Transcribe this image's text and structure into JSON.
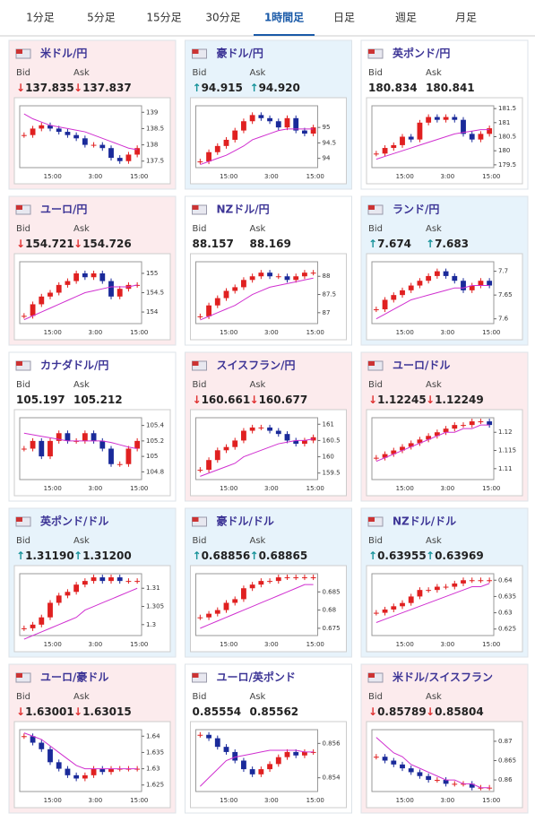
{
  "tabs": [
    "1分足",
    "5分足",
    "15分足",
    "30分足",
    "1時間足",
    "日足",
    "週足",
    "月足"
  ],
  "active_tab": 4,
  "labels": {
    "bid": "Bid",
    "ask": "Ask"
  },
  "xlabels": [
    "15:00",
    "3:00",
    "15:00"
  ],
  "cards": [
    {
      "title": "米ドル/円",
      "color": "#fcebed",
      "arrow": "↓",
      "bid": "137.835",
      "ask": "137.837",
      "ylim": [
        137.3,
        139.2
      ],
      "yticks": [
        139,
        138.5,
        138,
        137.5
      ],
      "close": [
        138.3,
        138.5,
        138.6,
        138.5,
        138.4,
        138.3,
        138.2,
        138.0,
        138.0,
        137.9,
        137.6,
        137.5,
        137.7,
        137.9
      ],
      "ma": [
        138.95,
        138.8,
        138.7,
        138.6,
        138.55,
        138.5,
        138.45,
        138.4,
        138.3,
        138.2,
        138.1,
        138.0,
        137.9,
        137.85
      ]
    },
    {
      "title": "豪ドル/円",
      "color": "#e7f3fb",
      "arrow": "↑",
      "bid": "94.915",
      "ask": "94.920",
      "ylim": [
        93.7,
        95.7
      ],
      "yticks": [
        95,
        94.5,
        94
      ],
      "close": [
        93.9,
        94.2,
        94.4,
        94.6,
        94.9,
        95.2,
        95.4,
        95.3,
        95.2,
        95.0,
        95.3,
        94.9,
        94.8,
        95.0
      ],
      "ma": [
        93.8,
        93.9,
        94.0,
        94.1,
        94.25,
        94.4,
        94.6,
        94.7,
        94.8,
        94.9,
        94.95,
        94.95,
        94.95,
        94.95
      ]
    },
    {
      "title": "英ポンド/円",
      "color": "#ffffff",
      "bid": "180.834",
      "ask": "180.841",
      "ylim": [
        179.4,
        181.6
      ],
      "yticks": [
        181.5,
        181,
        180.5,
        180,
        179.5
      ],
      "close": [
        179.9,
        180.1,
        180.2,
        180.5,
        180.4,
        181.0,
        181.2,
        181.1,
        181.2,
        181.1,
        180.6,
        180.4,
        180.6,
        180.8
      ],
      "ma": [
        179.7,
        179.8,
        179.9,
        180.0,
        180.1,
        180.2,
        180.3,
        180.4,
        180.5,
        180.6,
        180.65,
        180.7,
        180.75,
        180.75
      ]
    },
    {
      "title": "ユーロ/円",
      "color": "#fcebed",
      "arrow": "↓",
      "bid": "154.721",
      "ask": "154.726",
      "ylim": [
        153.7,
        155.3
      ],
      "yticks": [
        155,
        154.5,
        154
      ],
      "close": [
        153.9,
        154.2,
        154.4,
        154.5,
        154.7,
        154.8,
        155.0,
        154.9,
        155.0,
        154.8,
        154.4,
        154.6,
        154.7,
        154.7
      ],
      "ma": [
        153.8,
        153.9,
        154.0,
        154.1,
        154.2,
        154.3,
        154.4,
        154.5,
        154.55,
        154.6,
        154.65,
        154.65,
        154.65,
        154.7
      ]
    },
    {
      "title": "NZドル/円",
      "color": "#ffffff",
      "bid": "88.157",
      "ask": "88.169",
      "ylim": [
        86.7,
        88.4
      ],
      "yticks": [
        88,
        87.5,
        87
      ],
      "close": [
        86.9,
        87.2,
        87.4,
        87.6,
        87.7,
        87.9,
        88.0,
        88.1,
        88.0,
        88.0,
        87.9,
        88.0,
        88.1,
        88.1
      ],
      "ma": [
        86.8,
        86.9,
        87.0,
        87.1,
        87.2,
        87.35,
        87.5,
        87.6,
        87.7,
        87.75,
        87.8,
        87.85,
        87.9,
        87.95
      ]
    },
    {
      "title": "ランド/円",
      "color": "#e7f3fb",
      "arrow": "↑",
      "bid": "7.674",
      "ask": "7.683",
      "ylim": [
        7.59,
        7.72
      ],
      "yticks": [
        7.7,
        7.65,
        7.6
      ],
      "close": [
        7.62,
        7.64,
        7.65,
        7.66,
        7.67,
        7.68,
        7.69,
        7.7,
        7.69,
        7.68,
        7.66,
        7.67,
        7.68,
        7.67
      ],
      "ma": [
        7.6,
        7.61,
        7.62,
        7.63,
        7.64,
        7.645,
        7.65,
        7.655,
        7.66,
        7.665,
        7.665,
        7.67,
        7.67,
        7.67
      ]
    },
    {
      "title": "カナダドル/円",
      "color": "#ffffff",
      "bid": "105.197",
      "ask": "105.212",
      "ylim": [
        104.7,
        105.5
      ],
      "yticks": [
        105.4,
        105.2,
        105,
        104.8
      ],
      "close": [
        105.1,
        105.2,
        105.0,
        105.2,
        105.3,
        105.2,
        105.2,
        105.3,
        105.2,
        105.1,
        104.9,
        104.9,
        105.1,
        105.2
      ],
      "ma": [
        105.3,
        105.28,
        105.26,
        105.24,
        105.22,
        105.2,
        105.2,
        105.2,
        105.2,
        105.2,
        105.18,
        105.15,
        105.12,
        105.1
      ]
    },
    {
      "title": "スイスフラン/円",
      "color": "#fcebed",
      "arrow": "↓",
      "bid": "160.661",
      "ask": "160.677",
      "ylim": [
        159.3,
        161.2
      ],
      "yticks": [
        161,
        160.5,
        160,
        159.5
      ],
      "close": [
        159.6,
        159.9,
        160.2,
        160.3,
        160.5,
        160.8,
        160.9,
        160.9,
        160.8,
        160.7,
        160.5,
        160.4,
        160.5,
        160.6
      ],
      "ma": [
        159.4,
        159.5,
        159.6,
        159.7,
        159.8,
        160.0,
        160.1,
        160.2,
        160.3,
        160.4,
        160.45,
        160.5,
        160.5,
        160.55
      ]
    },
    {
      "title": "ユーロ/ドル",
      "color": "#fcebed",
      "arrow": "↓",
      "bid": "1.12245",
      "ask": "1.12249",
      "ylim": [
        1.107,
        1.124
      ],
      "yticks": [
        1.12,
        1.115,
        1.11
      ],
      "close": [
        1.113,
        1.114,
        1.115,
        1.116,
        1.117,
        1.118,
        1.119,
        1.12,
        1.121,
        1.122,
        1.122,
        1.123,
        1.123,
        1.122
      ],
      "ma": [
        1.112,
        1.113,
        1.114,
        1.115,
        1.116,
        1.117,
        1.118,
        1.119,
        1.12,
        1.12,
        1.121,
        1.121,
        1.122,
        1.122
      ]
    },
    {
      "title": "英ポンド/ドル",
      "color": "#e7f3fb",
      "arrow": "↑",
      "bid": "1.31190",
      "ask": "1.31200",
      "ylim": [
        1.297,
        1.314
      ],
      "yticks": [
        1.31,
        1.305,
        1.3
      ],
      "close": [
        1.299,
        1.3,
        1.302,
        1.306,
        1.308,
        1.309,
        1.311,
        1.312,
        1.313,
        1.312,
        1.313,
        1.312,
        1.312,
        1.312
      ],
      "ma": [
        1.296,
        1.297,
        1.298,
        1.299,
        1.3,
        1.301,
        1.302,
        1.304,
        1.305,
        1.306,
        1.307,
        1.308,
        1.309,
        1.31
      ]
    },
    {
      "title": "豪ドル/ドル",
      "color": "#e7f3fb",
      "arrow": "↑",
      "bid": "0.68856",
      "ask": "0.68865",
      "ylim": [
        0.673,
        0.69
      ],
      "yticks": [
        0.685,
        0.68,
        0.675
      ],
      "close": [
        0.678,
        0.679,
        0.68,
        0.682,
        0.683,
        0.686,
        0.687,
        0.688,
        0.688,
        0.689,
        0.689,
        0.689,
        0.689,
        0.689
      ],
      "ma": [
        0.675,
        0.676,
        0.677,
        0.678,
        0.679,
        0.68,
        0.681,
        0.682,
        0.683,
        0.684,
        0.685,
        0.686,
        0.687,
        0.687
      ]
    },
    {
      "title": "NZドル/ドル",
      "color": "#e7f3fb",
      "arrow": "↑",
      "bid": "0.63955",
      "ask": "0.63969",
      "ylim": [
        0.623,
        0.642
      ],
      "yticks": [
        0.64,
        0.635,
        0.63,
        0.625
      ],
      "close": [
        0.63,
        0.631,
        0.632,
        0.633,
        0.635,
        0.637,
        0.637,
        0.638,
        0.638,
        0.639,
        0.64,
        0.64,
        0.64,
        0.64
      ],
      "ma": [
        0.627,
        0.628,
        0.629,
        0.63,
        0.631,
        0.632,
        0.633,
        0.634,
        0.635,
        0.636,
        0.637,
        0.638,
        0.638,
        0.639
      ]
    },
    {
      "title": "ユーロ/豪ドル",
      "color": "#fcebed",
      "arrow": "↓",
      "bid": "1.63001",
      "ask": "1.63015",
      "ylim": [
        1.623,
        1.642
      ],
      "yticks": [
        1.64,
        1.635,
        1.63,
        1.625
      ],
      "close": [
        1.64,
        1.638,
        1.636,
        1.632,
        1.63,
        1.628,
        1.627,
        1.628,
        1.63,
        1.629,
        1.63,
        1.63,
        1.63,
        1.63
      ],
      "ma": [
        1.641,
        1.64,
        1.639,
        1.637,
        1.635,
        1.633,
        1.631,
        1.63,
        1.63,
        1.63,
        1.63,
        1.63,
        1.63,
        1.63
      ]
    },
    {
      "title": "ユーロ/英ポンド",
      "color": "#ffffff",
      "bid": "0.85554",
      "ask": "0.85562",
      "ylim": [
        0.8532,
        0.8568
      ],
      "yticks": [
        0.856,
        0.854
      ],
      "close": [
        0.8565,
        0.8563,
        0.8558,
        0.8555,
        0.855,
        0.8545,
        0.8542,
        0.8545,
        0.8548,
        0.8552,
        0.8555,
        0.8553,
        0.8555,
        0.8555
      ],
      "ma": [
        0.8535,
        0.854,
        0.8545,
        0.855,
        0.8552,
        0.8553,
        0.8554,
        0.8555,
        0.8556,
        0.8556,
        0.8556,
        0.8556,
        0.8555,
        0.8555
      ]
    },
    {
      "title": "米ドル/スイスフラン",
      "color": "#fcebed",
      "arrow": "↓",
      "bid": "0.85789",
      "ask": "0.85804",
      "ylim": [
        0.857,
        0.873
      ],
      "yticks": [
        0.87,
        0.865,
        0.86
      ],
      "close": [
        0.866,
        0.865,
        0.864,
        0.863,
        0.862,
        0.861,
        0.86,
        0.86,
        0.859,
        0.859,
        0.859,
        0.858,
        0.858,
        0.858
      ],
      "ma": [
        0.871,
        0.869,
        0.867,
        0.866,
        0.864,
        0.863,
        0.862,
        0.861,
        0.86,
        0.86,
        0.859,
        0.859,
        0.858,
        0.858
      ]
    }
  ]
}
